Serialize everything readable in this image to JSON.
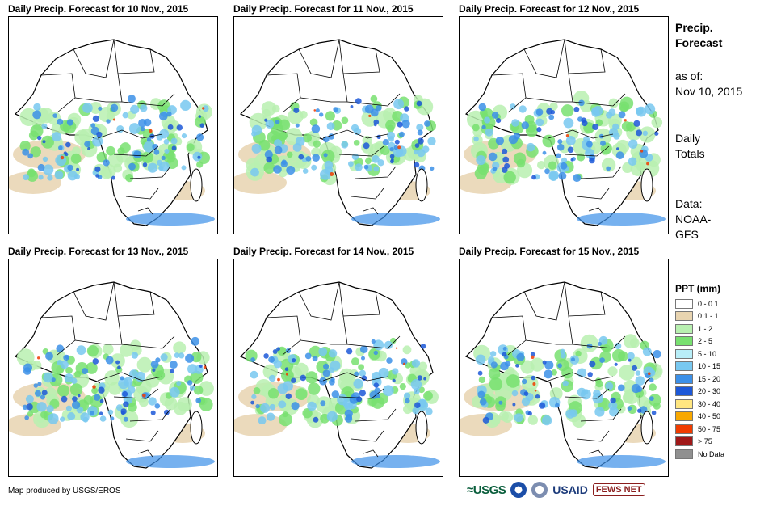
{
  "panels": [
    {
      "title": "Daily Precip. Forecast for 10 Nov., 2015"
    },
    {
      "title": "Daily Precip. Forecast for 11 Nov., 2015"
    },
    {
      "title": "Daily Precip. Forecast for 12 Nov., 2015"
    },
    {
      "title": "Daily Precip. Forecast for 13 Nov., 2015"
    },
    {
      "title": "Daily Precip. Forecast for 14 Nov., 2015"
    },
    {
      "title": "Daily Precip. Forecast for 15 Nov., 2015"
    }
  ],
  "sidebar": {
    "title_line1": "Precip.",
    "title_line2": "Forecast",
    "asof_label": "as of:",
    "asof_date": "Nov 10, 2015",
    "totals_line1": "Daily",
    "totals_line2": "Totals",
    "data_label": "Data:",
    "data_source_line1": "NOAA-",
    "data_source_line2": "GFS"
  },
  "legend": {
    "title": "PPT (mm)",
    "items": [
      {
        "label": "0 - 0.1",
        "color": "#ffffff"
      },
      {
        "label": "0.1 - 1",
        "color": "#e8d4b0"
      },
      {
        "label": "1 - 2",
        "color": "#b8f0b0"
      },
      {
        "label": "2 - 5",
        "color": "#78e070"
      },
      {
        "label": "5 - 10",
        "color": "#b8eef8"
      },
      {
        "label": "10 - 15",
        "color": "#78c8f0"
      },
      {
        "label": "15 - 20",
        "color": "#3c90e8"
      },
      {
        "label": "20 - 30",
        "color": "#1c58d8"
      },
      {
        "label": "30 - 40",
        "color": "#ffe680"
      },
      {
        "label": "40 - 50",
        "color": "#f8a800"
      },
      {
        "label": "50 - 75",
        "color": "#f03c00"
      },
      {
        "label": "> 75",
        "color": "#a01818"
      },
      {
        "label": "No Data",
        "color": "#909090"
      }
    ]
  },
  "footer": {
    "credit": "Map produced by USGS/EROS"
  },
  "logos": {
    "usgs": "≈USGS",
    "usaid": "USAID",
    "fews": "FEWS NET"
  }
}
